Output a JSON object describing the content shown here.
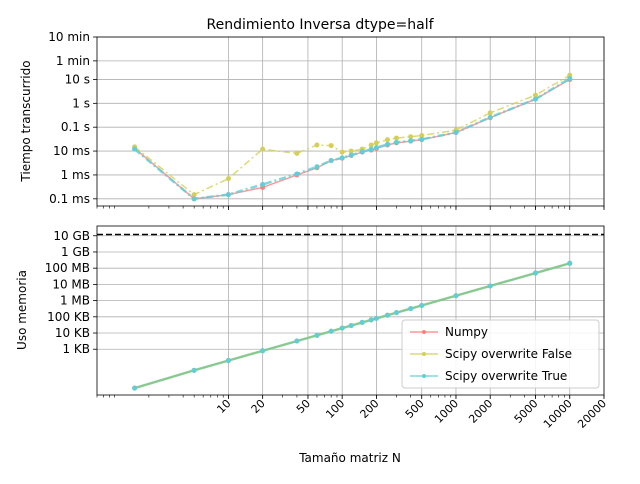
{
  "chart_data": [
    {
      "type": "line",
      "title": "Rendimiento Inversa dtype=half",
      "ylabel": "Tiempo transcurrido",
      "xscale": "log",
      "yscale": "log",
      "xlim": [
        0.7,
        20000
      ],
      "ylim_seconds": [
        5e-05,
        600
      ],
      "grid": true,
      "y_ticks": [
        {
          "value": 0.0001,
          "label": "0.1 ms"
        },
        {
          "value": 0.001,
          "label": "1 ms"
        },
        {
          "value": 0.01,
          "label": "10 ms"
        },
        {
          "value": 0.1,
          "label": "0.1 s"
        },
        {
          "value": 1,
          "label": "1 s"
        },
        {
          "value": 10,
          "label": "10 s"
        },
        {
          "value": 60,
          "label": "1 min"
        },
        {
          "value": 600,
          "label": "10 min"
        }
      ],
      "series": [
        {
          "name": "Numpy",
          "color": "#ff7f7f",
          "x": [
            1.5,
            5,
            10,
            20,
            40,
            60,
            80,
            100,
            120,
            150,
            180,
            200,
            250,
            300,
            400,
            500,
            1000,
            2000,
            5000,
            10000
          ],
          "y": [
            0.013,
            0.0001,
            0.00015,
            0.0003,
            0.001,
            0.002,
            0.004,
            0.005,
            0.0065,
            0.009,
            0.011,
            0.013,
            0.018,
            0.022,
            0.026,
            0.03,
            0.06,
            0.25,
            1.5,
            10
          ]
        },
        {
          "name": "Scipy overwrite False",
          "color": "#d4cf55",
          "x": [
            1.5,
            5,
            10,
            20,
            40,
            60,
            80,
            100,
            120,
            150,
            180,
            200,
            250,
            300,
            400,
            500,
            1000,
            2000,
            5000,
            10000
          ],
          "y": [
            0.015,
            0.00015,
            0.0007,
            0.012,
            0.008,
            0.018,
            0.017,
            0.009,
            0.01,
            0.012,
            0.018,
            0.022,
            0.03,
            0.035,
            0.04,
            0.045,
            0.075,
            0.4,
            2.2,
            15
          ]
        },
        {
          "name": "Scipy overwrite True",
          "color": "#5ecfd8",
          "x": [
            1.5,
            5,
            10,
            20,
            40,
            60,
            80,
            100,
            120,
            150,
            180,
            200,
            250,
            300,
            400,
            500,
            1000,
            2000,
            5000,
            10000
          ],
          "y": [
            0.012,
            0.0001,
            0.00015,
            0.0004,
            0.0011,
            0.0022,
            0.004,
            0.0052,
            0.0068,
            0.0092,
            0.012,
            0.014,
            0.019,
            0.023,
            0.027,
            0.031,
            0.06,
            0.26,
            1.5,
            11
          ]
        }
      ]
    },
    {
      "type": "line",
      "xlabel": "Tamaño matriz N",
      "ylabel": "Uso memoria",
      "xscale": "log",
      "yscale": "log",
      "xlim": [
        0.7,
        20000
      ],
      "ylim_bytes": [
        1.5,
        40000000000
      ],
      "grid": true,
      "legend_position": "lower-right",
      "x_ticks": [
        10,
        20,
        50,
        100,
        200,
        500,
        1000,
        2000,
        5000,
        10000,
        20000
      ],
      "y_ticks": [
        {
          "value": 1000,
          "label": "1 KB"
        },
        {
          "value": 10000,
          "label": "10 KB"
        },
        {
          "value": 100000,
          "label": "100 KB"
        },
        {
          "value": 1000000,
          "label": "1 MB"
        },
        {
          "value": 10000000,
          "label": "10 MB"
        },
        {
          "value": 100000000,
          "label": "100 MB"
        },
        {
          "value": 1000000000,
          "label": "1 GB"
        },
        {
          "value": 10000000000,
          "label": "10 GB"
        }
      ],
      "reference_line": {
        "value": 12000000000,
        "style": "dashed",
        "color": "#000000"
      },
      "series": [
        {
          "name": "Numpy",
          "color": "#ff7f7f",
          "x": [
            1.5,
            5,
            10,
            20,
            40,
            60,
            80,
            100,
            120,
            150,
            180,
            200,
            250,
            300,
            400,
            500,
            1000,
            2000,
            5000,
            10000
          ],
          "y": [
            4,
            50,
            200,
            800,
            3200,
            7200,
            12800,
            20000,
            28800,
            45000,
            64800,
            80000,
            125000,
            180000,
            320000,
            500000,
            2000000,
            8000000,
            50000000,
            200000000
          ]
        },
        {
          "name": "Scipy overwrite False",
          "color": "#d4cf55",
          "x": [
            1.5,
            5,
            10,
            20,
            40,
            60,
            80,
            100,
            120,
            150,
            180,
            200,
            250,
            300,
            400,
            500,
            1000,
            2000,
            5000,
            10000
          ],
          "y": [
            4,
            50,
            200,
            800,
            3200,
            7200,
            12800,
            20000,
            28800,
            45000,
            64800,
            80000,
            125000,
            180000,
            320000,
            500000,
            2000000,
            8000000,
            50000000,
            200000000
          ]
        },
        {
          "name": "Scipy overwrite True",
          "color": "#5ecfd8",
          "x": [
            1.5,
            5,
            10,
            20,
            40,
            60,
            80,
            100,
            120,
            150,
            180,
            200,
            250,
            300,
            400,
            500,
            1000,
            2000,
            5000,
            10000
          ],
          "y": [
            4,
            50,
            200,
            800,
            3200,
            7200,
            12800,
            20000,
            28800,
            45000,
            64800,
            80000,
            125000,
            180000,
            320000,
            500000,
            2000000,
            8000000,
            50000000,
            200000000
          ]
        }
      ]
    }
  ]
}
